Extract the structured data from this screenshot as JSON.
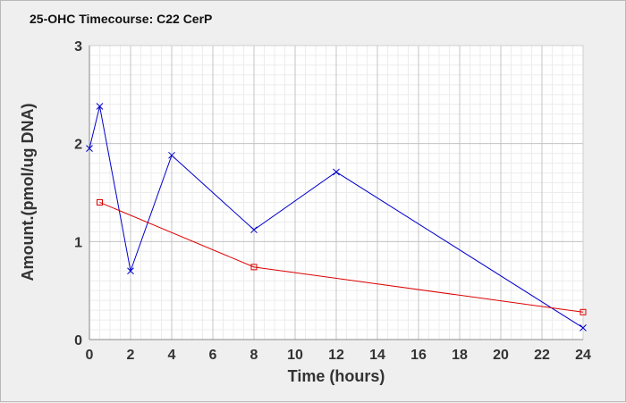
{
  "chart_data": {
    "type": "line",
    "title": "25-OHC Timecourse: C22 CerP",
    "xlabel": "Time (hours)",
    "ylabel": "Amount.(pmol/ug DNA)",
    "xlim": [
      0,
      24
    ],
    "ylim": [
      0,
      3
    ],
    "x_ticks": [
      0,
      2,
      4,
      6,
      8,
      10,
      12,
      14,
      16,
      18,
      20,
      22,
      24
    ],
    "y_ticks": [
      0,
      1,
      2,
      3
    ],
    "grid": true,
    "series": [
      {
        "color": "#0000cc",
        "marker": "x",
        "x": [
          0,
          0.5,
          2,
          4,
          8,
          12,
          24
        ],
        "y": [
          1.95,
          2.38,
          0.7,
          1.88,
          1.12,
          1.71,
          0.12
        ]
      },
      {
        "color": "#dd0000",
        "marker": "square",
        "x": [
          0.5,
          8,
          24
        ],
        "y": [
          1.4,
          0.74,
          0.28
        ]
      }
    ]
  }
}
